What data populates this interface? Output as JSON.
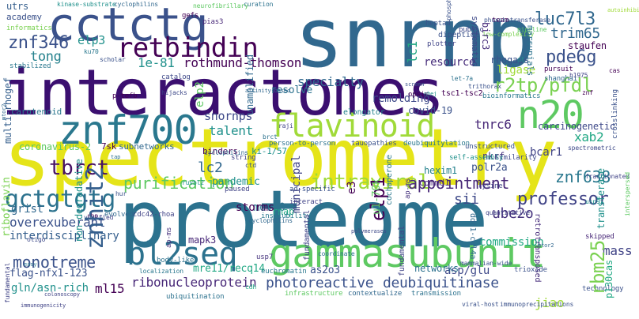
{
  "words": [
    {
      "text": "spectrometry",
      "color": "#e5e419"
    },
    {
      "text": "proteome",
      "color": "#2c728e"
    },
    {
      "text": "interactomes",
      "color": "#3b0f70"
    },
    {
      "text": "snrnp",
      "color": "#31688e"
    },
    {
      "text": "cctctg",
      "color": "#3b528b"
    },
    {
      "text": "gammasubunit",
      "color": "#5ec962"
    },
    {
      "text": "bl2seq",
      "color": "#2c728e"
    },
    {
      "text": "znf700",
      "color": "#2a788e"
    },
    {
      "text": "flavinoid",
      "color": "#a0da39"
    },
    {
      "text": "n20",
      "color": "#5ec962"
    },
    {
      "text": "retbindin",
      "color": "#440154"
    },
    {
      "text": "r2tp/pfdl",
      "color": "#7ad151"
    },
    {
      "text": "luc7l3",
      "color": "#31688e"
    },
    {
      "text": "znf346",
      "color": "#3b528b"
    },
    {
      "text": "pde6g",
      "color": "#3b528b"
    },
    {
      "text": "trim65",
      "color": "#31688e"
    },
    {
      "text": "elp3",
      "color": "#21918c"
    },
    {
      "text": "tong",
      "color": "#26828e"
    },
    {
      "text": "1e-81",
      "color": "#21918c"
    },
    {
      "text": "rothmund-thomson",
      "color": "#440154"
    },
    {
      "text": "specialty",
      "color": "#31688e"
    },
    {
      "text": "remolding",
      "color": "#3e4989"
    },
    {
      "text": "resource",
      "color": "#472d7b"
    },
    {
      "text": "rhogaps",
      "color": "#3b528b"
    },
    {
      "text": "staufen",
      "color": "#440154"
    },
    {
      "text": "ligase",
      "color": "#a0da39"
    },
    {
      "text": "tnrc6",
      "color": "#482878"
    },
    {
      "text": "xab2",
      "color": "#22a884"
    },
    {
      "text": "bcar1",
      "color": "#414487"
    },
    {
      "text": "carcinogenetic",
      "color": "#3e4989"
    },
    {
      "text": "talent",
      "color": "#21918c"
    },
    {
      "text": "snornps",
      "color": "#3e4989"
    },
    {
      "text": "lc2",
      "color": "#31688e"
    },
    {
      "text": "purification",
      "color": "#5ec962"
    },
    {
      "text": "intraviral",
      "color": "#a0da39"
    },
    {
      "text": "appointment",
      "color": "#482878"
    },
    {
      "text": "professor",
      "color": "#414487"
    },
    {
      "text": "gctgtgtg",
      "color": "#2c728e"
    },
    {
      "text": "tbrct",
      "color": "#471164"
    },
    {
      "text": "znhit2",
      "color": "#355f8d"
    },
    {
      "text": "elp1",
      "color": "#440154"
    },
    {
      "text": "sii",
      "color": "#3e4989"
    },
    {
      "text": "znf638",
      "color": "#2a788e"
    },
    {
      "text": "ube2o",
      "color": "#46337e"
    },
    {
      "text": "rbm25",
      "color": "#7ad151"
    },
    {
      "text": "mov10",
      "color": "#2c728e"
    },
    {
      "text": "overexuberant",
      "color": "#3b528b"
    },
    {
      "text": "interdisciplinary",
      "color": "#355f8d"
    },
    {
      "text": "monotreme",
      "color": "#3b528b"
    },
    {
      "text": "ml15",
      "color": "#440154"
    },
    {
      "text": "ribonucleoprotein",
      "color": "#482878"
    },
    {
      "text": "photoreactive",
      "color": "#3b528b"
    },
    {
      "text": "deubiquitinase",
      "color": "#3b528b"
    },
    {
      "text": "mass",
      "color": "#414487"
    },
    {
      "text": "commission",
      "color": "#22a884"
    },
    {
      "text": "grist",
      "color": "#31688e"
    },
    {
      "text": "storms",
      "color": "#440154"
    },
    {
      "text": "rnap",
      "color": "#22a884"
    },
    {
      "text": "mapk3",
      "color": "#482878"
    },
    {
      "text": "mre11/recq14",
      "color": "#22a884"
    },
    {
      "text": "as2o3",
      "color": "#3b528b"
    },
    {
      "text": "asp/glu",
      "color": "#3e4989"
    },
    {
      "text": "networks",
      "color": "#2c728e"
    },
    {
      "text": "jiao",
      "color": "#a0da39"
    },
    {
      "text": "p130cas",
      "color": "#22a884"
    },
    {
      "text": "flag-nfx1-123",
      "color": "#3b528b"
    },
    {
      "text": "gln/asn-rich",
      "color": "#21918c"
    },
    {
      "text": "coronavirus-2",
      "color": "#5ec962"
    },
    {
      "text": "7sk",
      "color": "#440154"
    },
    {
      "text": "subnetworks",
      "color": "#31688e"
    },
    {
      "text": "pandemic",
      "color": "#21918c"
    },
    {
      "text": "municipal",
      "color": "#414487"
    },
    {
      "text": "e3",
      "color": "#440154"
    },
    {
      "text": "u1-70k",
      "color": "#5ec962"
    },
    {
      "text": "polr2a",
      "color": "#3b528b"
    },
    {
      "text": "nkrf",
      "color": "#46337e"
    },
    {
      "text": "hexim1",
      "color": "#26828e"
    },
    {
      "text": "commd1",
      "color": "#482878"
    },
    {
      "text": "covid-19",
      "color": "#3b528b"
    },
    {
      "text": "tsc1-tsc2",
      "color": "#440154"
    },
    {
      "text": "resolve",
      "color": "#2c728e"
    },
    {
      "text": "carotenoid",
      "color": "#2a788e"
    },
    {
      "text": "binders",
      "color": "#440154"
    },
    {
      "text": "ki-1/57",
      "color": "#21918c"
    },
    {
      "text": "academy",
      "color": "#3b528b"
    },
    {
      "text": "utrs",
      "color": "#355f8d"
    },
    {
      "text": "informatics",
      "color": "#7ad151"
    },
    {
      "text": "multi-rhogef",
      "color": "#355f8d"
    },
    {
      "text": "riboflavin",
      "color": "#7ad151"
    },
    {
      "text": "non-degradative",
      "color": "#21918c"
    },
    {
      "text": "lc1",
      "color": "#22a884"
    },
    {
      "text": "elp2",
      "color": "#5ec962"
    },
    {
      "text": "unamplified",
      "color": "#31688e"
    },
    {
      "text": "cochaperone",
      "color": "#2a788e"
    },
    {
      "text": "systematic",
      "color": "#3e4989"
    },
    {
      "text": "birc3",
      "color": "#472d7b"
    },
    {
      "text": "marsupials",
      "color": "#2c728e"
    },
    {
      "text": "ddb1-cul4a",
      "color": "#31688e"
    },
    {
      "text": "retrotransposed",
      "color": "#472d7b"
    },
    {
      "text": "transferase",
      "color": "#21918c"
    },
    {
      "text": "dipeptide",
      "color": "#3b528b"
    },
    {
      "text": "plotter",
      "color": "#414487"
    },
    {
      "text": "pias3",
      "color": "#482878"
    },
    {
      "text": "catalog",
      "color": "#3e4989"
    },
    {
      "text": "scholar",
      "color": "#3b528b"
    },
    {
      "text": "stabilized",
      "color": "#2a788e"
    },
    {
      "text": "p-tefb",
      "color": "#440154"
    },
    {
      "text": "hijacks",
      "color": "#3e4989"
    },
    {
      "text": "elongator",
      "color": "#26828e"
    },
    {
      "text": "opsin",
      "color": "#440154"
    },
    {
      "text": "person-to-person",
      "color": "#2c728e"
    },
    {
      "text": "tauopathies",
      "color": "#3b528b"
    },
    {
      "text": "deubiquitylation",
      "color": "#2a788e"
    },
    {
      "text": "unstructured",
      "color": "#3b528b"
    },
    {
      "text": "similarity",
      "color": "#3e4989"
    },
    {
      "text": "self-assembly",
      "color": "#21918c"
    },
    {
      "text": "lysine",
      "color": "#414487"
    },
    {
      "text": "string",
      "color": "#414487"
    },
    {
      "text": "paused",
      "color": "#414487"
    },
    {
      "text": "ad-specific",
      "color": "#3b528b"
    },
    {
      "text": "interact",
      "color": "#414487"
    },
    {
      "text": "insolubility",
      "color": "#2a788e"
    },
    {
      "text": "evolved",
      "color": "#31688e"
    },
    {
      "text": "cdc42-rhoa",
      "color": "#414487"
    },
    {
      "text": "body-like",
      "color": "#2c728e"
    },
    {
      "text": "usp7",
      "color": "#46337e"
    },
    {
      "text": "euchromatin",
      "color": "#2a788e"
    },
    {
      "text": "ubiquitination",
      "color": "#2c728e"
    },
    {
      "text": "contextualize",
      "color": "#31688e"
    },
    {
      "text": "transmission",
      "color": "#2c728e"
    },
    {
      "text": "infrastructure",
      "color": "#5ec962"
    },
    {
      "text": "technology",
      "color": "#3b528b"
    },
    {
      "text": "skipped",
      "color": "#482878"
    },
    {
      "text": "trioxide",
      "color": "#3b528b"
    },
    {
      "text": "pursuit",
      "color": "#440154"
    },
    {
      "text": "shanghai",
      "color": "#31688e"
    },
    {
      "text": "team",
      "color": "#440154"
    },
    {
      "text": "curation",
      "color": "#2c728e"
    },
    {
      "text": "kinase-substrate",
      "color": "#21918c"
    },
    {
      "text": "arg/lys",
      "color": "#440154"
    },
    {
      "text": "multidomain",
      "color": "#7ad151"
    },
    {
      "text": "rbps",
      "color": "#440154"
    },
    {
      "text": "gefs",
      "color": "#440154"
    },
    {
      "text": "ku70",
      "color": "#2a788e"
    },
    {
      "text": "heptad",
      "color": "#3b528b"
    },
    {
      "text": "public",
      "color": "#3e4989"
    },
    {
      "text": "pipeline",
      "color": "#5ec962"
    },
    {
      "text": "dt",
      "color": "#21918c"
    },
    {
      "text": "h1975",
      "color": "#414487"
    },
    {
      "text": "cas",
      "color": "#440154"
    },
    {
      "text": "znf",
      "color": "#440154"
    },
    {
      "text": "brct",
      "color": "#2c728e"
    },
    {
      "text": "raji",
      "color": "#414487"
    },
    {
      "text": "ctd",
      "color": "#3b528b"
    },
    {
      "text": "hur",
      "color": "#3b528b"
    },
    {
      "text": "ruvbl2",
      "color": "#21918c"
    },
    {
      "text": "rbp",
      "color": "#440154"
    },
    {
      "text": "localization",
      "color": "#2a788e"
    },
    {
      "text": "bioinformatics",
      "color": "#2a788e"
    },
    {
      "text": "spectrometric",
      "color": "#3e4989"
    },
    {
      "text": "coordinate",
      "color": "#2c728e"
    },
    {
      "text": "mammalian-wide",
      "color": "#3b528b"
    },
    {
      "text": "neurofibrillary",
      "color": "#5ec962"
    },
    {
      "text": "interspersed",
      "color": "#5ec962"
    },
    {
      "text": "crosslinking",
      "color": "#3b528b"
    },
    {
      "text": "autoinhibited",
      "color": "#a0da39"
    },
    {
      "text": "viral-host",
      "color": "#3b528b"
    },
    {
      "text": "immunoprecipitations",
      "color": "#3b528b"
    },
    {
      "text": "immunogenicity",
      "color": "#414487"
    },
    {
      "text": "fundamental",
      "color": "#414487"
    },
    {
      "text": "colonoscopy",
      "color": "#414487"
    },
    {
      "text": "let-7a",
      "color": "#2c728e"
    },
    {
      "text": "oligo",
      "color": "#3e4989"
    },
    {
      "text": "verified",
      "color": "#414487"
    },
    {
      "text": "easy",
      "color": "#2a788e"
    },
    {
      "text": "fractionated",
      "color": "#414487"
    },
    {
      "text": "screen",
      "color": "#3b528b"
    },
    {
      "text": "polymerases",
      "color": "#3e4989"
    },
    {
      "text": "quantitative",
      "color": "#414487"
    },
    {
      "text": "mtor2",
      "color": "#31688e"
    },
    {
      "text": "ap-ms",
      "color": "#46337e"
    },
    {
      "text": "cyclophilins",
      "color": "#31688e"
    },
    {
      "text": "cdh",
      "color": "#22a884"
    },
    {
      "text": "affinity-based",
      "color": "#31688e"
    },
    {
      "text": "low-complexity",
      "color": "#7ad151"
    },
    {
      "text": "phosphotransferase",
      "color": "#3b528b"
    },
    {
      "text": "trithorax",
      "color": "#3b528b"
    },
    {
      "text": "nhej",
      "color": "#21918c"
    },
    {
      "text": "tap",
      "color": "#2c728e"
    },
    {
      "text": "usp9x",
      "color": "#21918c"
    },
    {
      "text": "c/g1",
      "color": "#5ec962"
    },
    {
      "text": "prmt1",
      "color": "#440154"
    },
    {
      "text": "protrusion",
      "color": "#5ec962"
    },
    {
      "text": "fund",
      "color": "#46337e"
    }
  ]
}
